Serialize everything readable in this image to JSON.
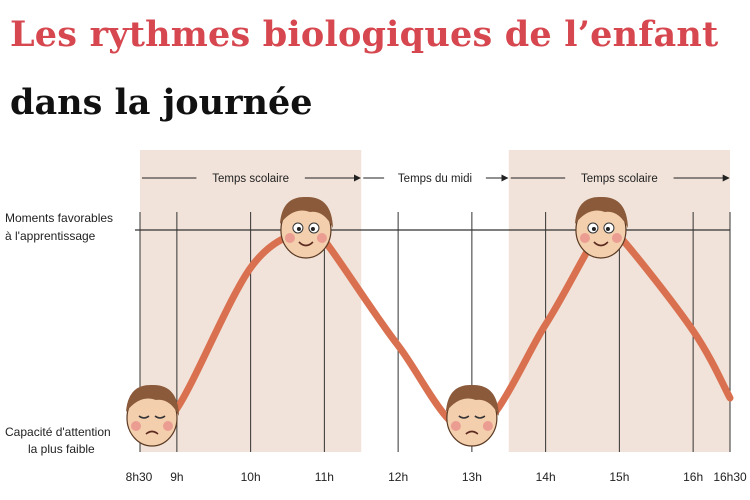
{
  "title": "Les rythmes biologiques de l’enfant",
  "subtitle": "dans la journée",
  "colors": {
    "title": "#d6474f",
    "subtitle": "#111111",
    "curve": "#d9704f",
    "school_band": "#f1e3d9",
    "grid": "#333333",
    "face_skin": "#f3cfae",
    "face_hair": "#8a5a3b",
    "face_cheek": "#e9908a"
  },
  "periods": [
    {
      "label": "Temps scolaire",
      "start": "8h30",
      "end": "11h30",
      "shaded": true
    },
    {
      "label": "Temps du midi",
      "start": "11h30",
      "end": "13h30",
      "shaded": false
    },
    {
      "label": "Temps scolaire",
      "start": "13h30",
      "end": "16h30",
      "shaded": true
    }
  ],
  "chart_data": {
    "type": "line",
    "title": "Les rythmes biologiques de l’enfant dans la journée",
    "xlabel": "",
    "ylabel": "",
    "x_ticks": [
      "8h30",
      "9h",
      "10h",
      "11h",
      "12h",
      "13h",
      "14h",
      "15h",
      "16h",
      "16h30"
    ],
    "y_levels": [
      "Capacité d'attention la plus faible",
      "Moments favorables à l'apprentissage"
    ],
    "series": [
      {
        "x": [
          "8h30",
          "9h",
          "10h",
          "10h45",
          "11h",
          "12h",
          "13h",
          "14h",
          "14h45",
          "15h",
          "16h",
          "16h30"
        ],
        "y": [
          0.04,
          0.15,
          0.82,
          1.0,
          0.95,
          0.45,
          0.04,
          0.55,
          1.0,
          0.97,
          0.52,
          0.2
        ]
      }
    ],
    "markers": [
      {
        "time": "8h30",
        "state": "tired",
        "level": 0.0
      },
      {
        "time": "10h45",
        "state": "awake",
        "level": 1.0
      },
      {
        "time": "13h",
        "state": "tired",
        "level": 0.0
      },
      {
        "time": "14h45",
        "state": "awake",
        "level": 1.0
      }
    ],
    "grid": true
  }
}
